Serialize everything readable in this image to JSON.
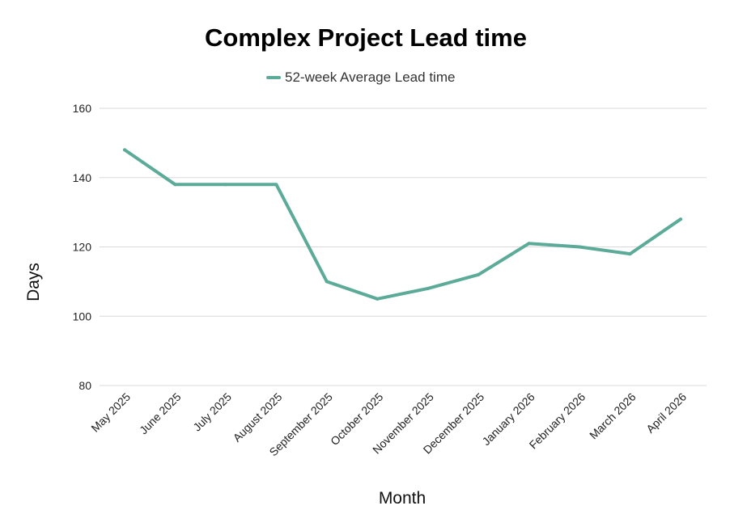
{
  "chart_data": {
    "type": "line",
    "title": "Complex Project Lead time",
    "xlabel": "Month",
    "ylabel": "Days",
    "ylim": [
      80,
      160
    ],
    "yticks": [
      80,
      100,
      120,
      140,
      160
    ],
    "grid": true,
    "legend_position": "top-center",
    "categories": [
      "May 2025",
      "June 2025",
      "July 2025",
      "August 2025",
      "September 2025",
      "October 2025",
      "November 2025",
      "December 2025",
      "January 2026",
      "February 2026",
      "March 2026",
      "April 2026"
    ],
    "series": [
      {
        "name": "52-week Average Lead time",
        "color": "#5bab98",
        "values": [
          148,
          138,
          138,
          138,
          110,
          105,
          108,
          112,
          121,
          120,
          118,
          128
        ]
      }
    ]
  }
}
